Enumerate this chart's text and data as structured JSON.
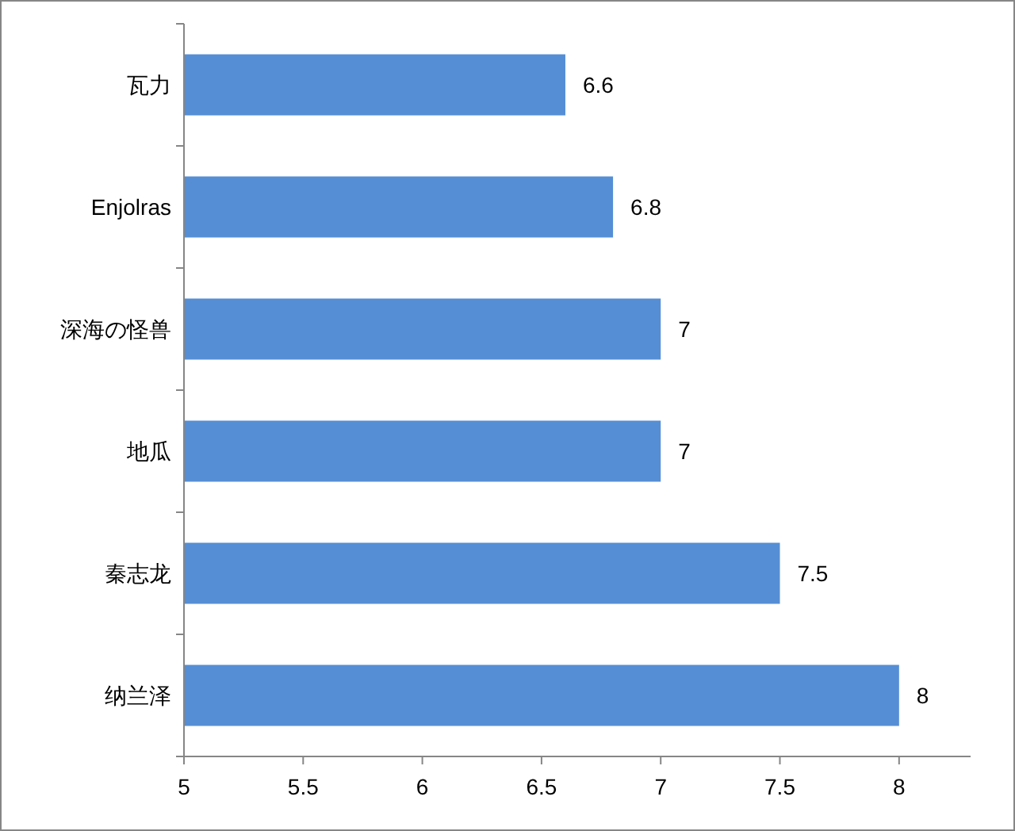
{
  "chart_data": {
    "type": "bar",
    "orientation": "horizontal",
    "categories": [
      "瓦力",
      "Enjolras",
      "深海の怪兽",
      "地瓜",
      "秦志龙",
      "纳兰泽"
    ],
    "values": [
      6.6,
      6.8,
      7,
      7,
      7.5,
      8
    ],
    "color": "#558ed5",
    "xlim": [
      5,
      8.3
    ],
    "xticks": [
      5,
      5.5,
      6,
      6.5,
      7,
      7.5,
      8
    ],
    "data_labels": true
  }
}
